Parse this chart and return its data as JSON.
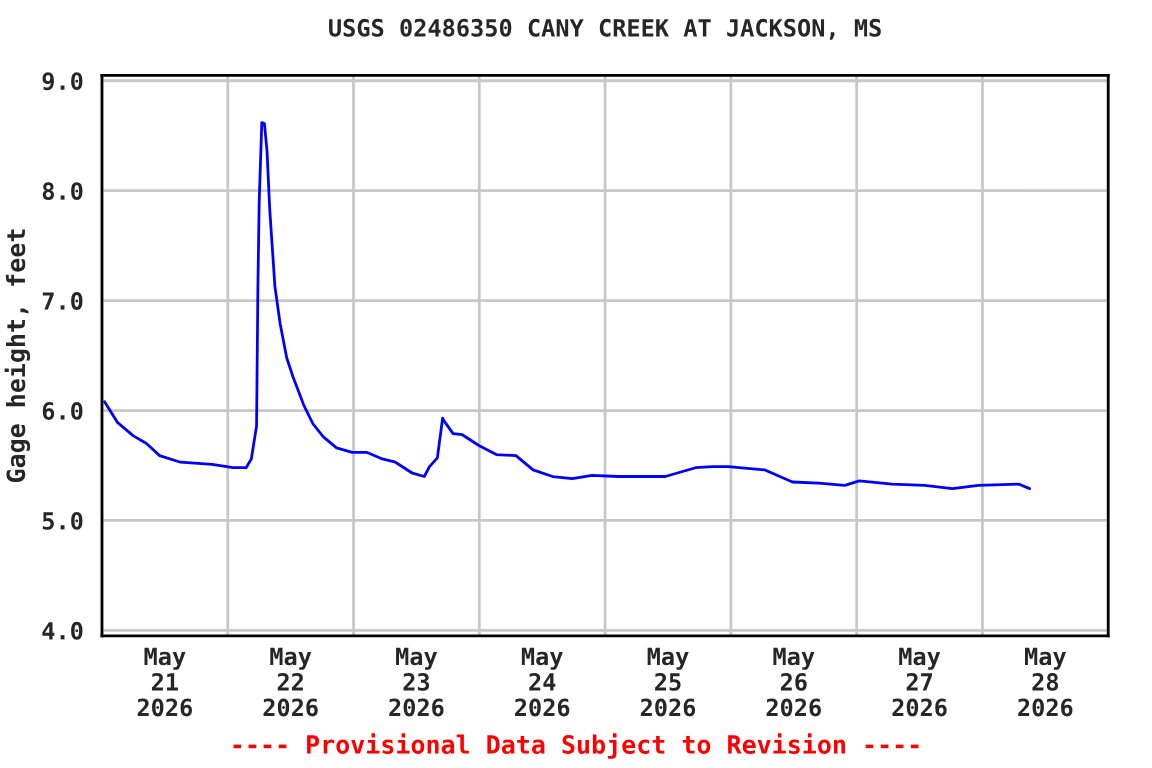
{
  "chart_data": {
    "type": "line",
    "title": "USGS 02486350 CANY CREEK AT JACKSON, MS",
    "ylabel": "Gage height, feet",
    "x": [
      "2026-05-21T00:30",
      "2026-05-21T03:00",
      "2026-05-21T06:00",
      "2026-05-21T08:30",
      "2026-05-21T11:00",
      "2026-05-21T15:00",
      "2026-05-21T21:00",
      "2026-05-22T01:00",
      "2026-05-22T03:30",
      "2026-05-22T04:30",
      "2026-05-22T05:30",
      "2026-05-22T05:45",
      "2026-05-22T06:00",
      "2026-05-22T06:30",
      "2026-05-22T07:00",
      "2026-05-22T07:30",
      "2026-05-22T08:00",
      "2026-05-22T09:00",
      "2026-05-22T10:00",
      "2026-05-22T11:15",
      "2026-05-22T12:30",
      "2026-05-22T14:30",
      "2026-05-22T16:15",
      "2026-05-22T18:15",
      "2026-05-22T20:45",
      "2026-05-22T23:45",
      "2026-05-23T02:30",
      "2026-05-23T05:30",
      "2026-05-23T08:00",
      "2026-05-23T11:15",
      "2026-05-23T13:30",
      "2026-05-23T14:30",
      "2026-05-23T16:00",
      "2026-05-23T17:00",
      "2026-05-23T17:30",
      "2026-05-23T19:00",
      "2026-05-23T20:45",
      "2026-05-24T00:00",
      "2026-05-24T03:15",
      "2026-05-24T07:00",
      "2026-05-24T10:15",
      "2026-05-24T14:00",
      "2026-05-24T17:45",
      "2026-05-24T21:30",
      "2026-05-25T02:30",
      "2026-05-25T11:30",
      "2026-05-25T17:15",
      "2026-05-25T20:30",
      "2026-05-25T23:30",
      "2026-05-26T06:30",
      "2026-05-26T11:45",
      "2026-05-26T16:45",
      "2026-05-26T21:45",
      "2026-05-27T00:30",
      "2026-05-27T06:45",
      "2026-05-27T13:00",
      "2026-05-27T18:15",
      "2026-05-27T23:15",
      "2026-05-28T07:00",
      "2026-05-28T09:00"
    ],
    "series": [
      {
        "color": "#0000ff",
        "values": [
          6.08,
          5.89,
          5.77,
          5.7,
          5.59,
          5.53,
          5.51,
          5.48,
          5.48,
          5.56,
          5.86,
          7.1,
          7.9,
          8.62,
          8.61,
          8.36,
          7.84,
          7.13,
          6.79,
          6.48,
          6.3,
          6.05,
          5.88,
          5.76,
          5.66,
          5.62,
          5.62,
          5.56,
          5.53,
          5.43,
          5.4,
          5.49,
          5.57,
          5.93,
          5.89,
          5.79,
          5.78,
          5.68,
          5.6,
          5.59,
          5.46,
          5.4,
          5.38,
          5.41,
          5.4,
          5.4,
          5.48,
          5.49,
          5.49,
          5.46,
          5.35,
          5.34,
          5.32,
          5.36,
          5.33,
          5.32,
          5.29,
          5.32,
          5.33,
          5.29
        ]
      }
    ],
    "xlim": [
      "2026-05-21T00:00",
      "2026-05-29T00:00"
    ],
    "xticks": [
      {
        "value": "2026-05-21T00:00",
        "label": null
      },
      {
        "value": "2026-05-21T12:00",
        "label": "May\n21\n2026"
      },
      {
        "value": "2026-05-22T00:00",
        "label": null
      },
      {
        "value": "2026-05-22T12:00",
        "label": "May\n22\n2026"
      },
      {
        "value": "2026-05-23T00:00",
        "label": null
      },
      {
        "value": "2026-05-23T12:00",
        "label": "May\n23\n2026"
      },
      {
        "value": "2026-05-24T00:00",
        "label": null
      },
      {
        "value": "2026-05-24T12:00",
        "label": "May\n24\n2026"
      },
      {
        "value": "2026-05-25T00:00",
        "label": null
      },
      {
        "value": "2026-05-25T12:00",
        "label": "May\n25\n2026"
      },
      {
        "value": "2026-05-26T00:00",
        "label": null
      },
      {
        "value": "2026-05-26T12:00",
        "label": "May\n26\n2026"
      },
      {
        "value": "2026-05-27T00:00",
        "label": null
      },
      {
        "value": "2026-05-27T12:00",
        "label": "May\n27\n2026"
      },
      {
        "value": "2026-05-28T00:00",
        "label": null
      },
      {
        "value": "2026-05-28T12:00",
        "label": "May\n28\n2026"
      },
      {
        "value": "2026-05-29T00:00",
        "label": null
      }
    ],
    "ylim": [
      3.95,
      9.05
    ],
    "yticks": [
      {
        "value": 4,
        "label": "4.0"
      },
      {
        "value": 5,
        "label": "5.0"
      },
      {
        "value": 6,
        "label": "6.0"
      },
      {
        "value": 7,
        "label": "7.0"
      },
      {
        "value": 8,
        "label": "8.0"
      },
      {
        "value": 9,
        "label": "9.0"
      }
    ],
    "grid": true,
    "marker": "none",
    "line_style": "solid",
    "legend": false,
    "annotations": [
      "---- Provisional Data Subject to Revision ----"
    ]
  }
}
